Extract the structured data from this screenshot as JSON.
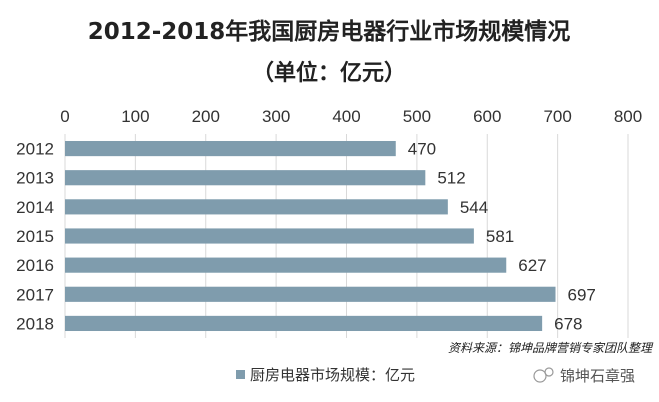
{
  "chart_data": {
    "type": "bar",
    "orientation": "horizontal",
    "title": "2012-2018年我国厨房电器行业市场规模情况",
    "subtitle": "（单位：亿元）",
    "categories": [
      "2012",
      "2013",
      "2014",
      "2015",
      "2016",
      "2017",
      "2018"
    ],
    "series": [
      {
        "name": "厨房电器市场规模：亿元",
        "values": [
          470,
          512,
          544,
          581,
          627,
          697,
          678
        ]
      }
    ],
    "xlim": [
      0,
      800
    ],
    "x_ticks": [
      0,
      100,
      200,
      300,
      400,
      500,
      600,
      700,
      800
    ],
    "x_axis_position": "top",
    "grid": true,
    "legend_position": "bottom-left",
    "bar_color": "#7f9cad",
    "source": "资料来源：锦坤品牌营销专家团队整理",
    "watermark": "锦坤石章强"
  }
}
